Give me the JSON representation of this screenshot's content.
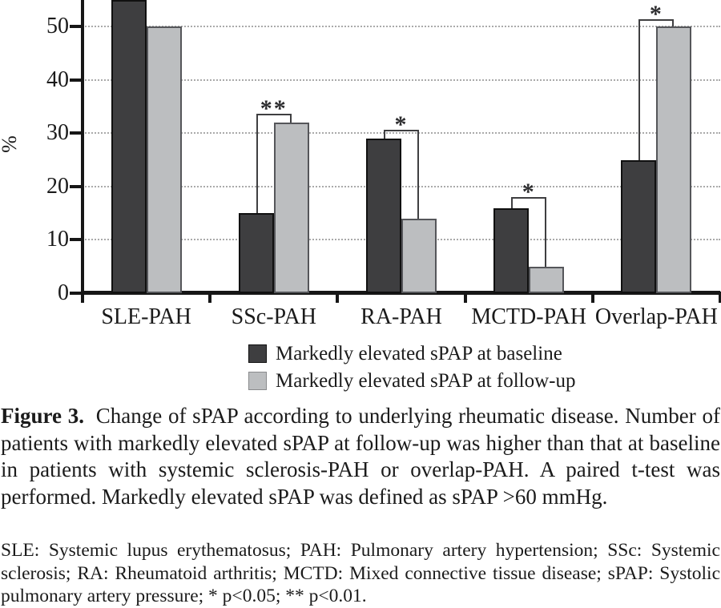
{
  "figure": {
    "caption_label": "Figure 3.",
    "caption_text": "Change of sPAP according to underlying rheumatic disease. Number of patients with markedly elevated sPAP at follow-up was higher than that at baseline in patients with systemic sclerosis-PAH or overlap-PAH. A paired t-test was performed. Markedly elevated sPAP was defined as sPAP >60 mmHg.",
    "footnote": "SLE: Systemic lupus erythematosus; PAH: Pulmonary artery hypertension; SSc: Systemic sclerosis; RA: Rheumatoid arthritis; MCTD: Mixed connective tissue disease; sPAP: Systolic pulmonary artery pressure; * p<0.05; ** p<0.01."
  },
  "chart_data": {
    "type": "bar",
    "categories": [
      "SLE-PAH",
      "SSc-PAH",
      "RA-PAH",
      "MCTD-PAH",
      "Overlap-PAH"
    ],
    "series": [
      {
        "name": "Markedly elevated sPAP at baseline",
        "color": "#3e3e40",
        "values": [
          55,
          15,
          29,
          16,
          25
        ]
      },
      {
        "name": "Markedly elevated sPAP at follow-up",
        "color": "#bcbec0",
        "values": [
          50,
          32,
          14,
          5,
          50
        ]
      }
    ],
    "ylabel": "%",
    "xlabel": "",
    "yticks": [
      0,
      10,
      20,
      30,
      40,
      50
    ],
    "ylim": [
      0,
      55
    ],
    "grid": "horizontal-dotted",
    "legend_position": "bottom",
    "significance": [
      {
        "category": "SSc-PAH",
        "label": "**",
        "level": 33.7
      },
      {
        "category": "RA-PAH",
        "label": "*",
        "level": 30.7
      },
      {
        "category": "MCTD-PAH",
        "label": "*",
        "level": 18.0
      },
      {
        "category": "Overlap-PAH",
        "label": "*",
        "level": 51.4
      }
    ]
  }
}
